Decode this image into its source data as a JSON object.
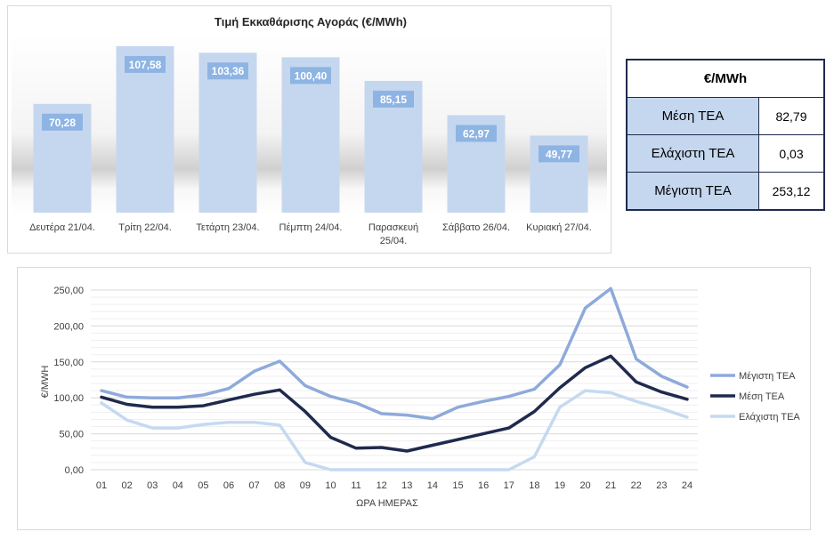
{
  "bar_chart": {
    "title": "Τιμή Εκκαθάρισης Αγοράς (€/MWh)"
  },
  "stats_table": {
    "header": "€/MWh",
    "rows": [
      {
        "label": "Μέση ΤΕΑ",
        "value": "82,79"
      },
      {
        "label": "Ελάχιστη ΤΕΑ",
        "value": "0,03"
      },
      {
        "label": "Μέγιστη ΤΕΑ",
        "value": "253,12"
      }
    ]
  },
  "colors": {
    "bar": "#c5d7ef",
    "bar_label_bg": "#8eb4e3",
    "max_series": "#8eaadb",
    "mean_series": "#1f2a4d",
    "min_series": "#c5d9f1",
    "grid": "#e6e6e6"
  },
  "chart_data": [
    {
      "type": "bar",
      "title": "Τιμή Εκκαθάρισης Αγοράς (€/MWh)",
      "categories": [
        [
          "Δευτέρα 21/04."
        ],
        [
          "Τρίτη 22/04."
        ],
        [
          "Τετάρτη 23/04."
        ],
        [
          "Πέμπτη 24/04."
        ],
        [
          "Παρασκευή",
          "25/04."
        ],
        [
          "Σάββατο 26/04."
        ],
        [
          "Κυριακή 27/04."
        ]
      ],
      "values": [
        70.28,
        107.58,
        103.36,
        100.4,
        85.15,
        62.97,
        49.77
      ],
      "value_labels": [
        "70,28",
        "107,58",
        "103,36",
        "100,40",
        "85,15",
        "62,97",
        "49,77"
      ],
      "ylim": [
        0,
        115
      ],
      "grid": false
    },
    {
      "type": "line",
      "x": [
        "01",
        "02",
        "03",
        "04",
        "05",
        "06",
        "07",
        "08",
        "09",
        "10",
        "11",
        "12",
        "13",
        "14",
        "15",
        "16",
        "17",
        "18",
        "19",
        "20",
        "21",
        "22",
        "23",
        "24"
      ],
      "xlabel": "ΩΡΑ ΗΜΕΡΑΣ",
      "ylabel": "€/MWH",
      "ylim": [
        0,
        250
      ],
      "yticks": [
        "0,00",
        "50,00",
        "100,00",
        "150,00",
        "200,00",
        "250,00"
      ],
      "ytick_values": [
        0,
        50,
        100,
        150,
        200,
        250
      ],
      "grid": true,
      "legend": "right",
      "series": [
        {
          "name": "Μέγιστη ΤΕΑ",
          "values": [
            110,
            101,
            100,
            100,
            104,
            113,
            137,
            151,
            117,
            102,
            93,
            78,
            76,
            71,
            87,
            95,
            102,
            112,
            146,
            225,
            252,
            154,
            130,
            115
          ]
        },
        {
          "name": "Μέση ΤΕΑ",
          "values": [
            101,
            91,
            87,
            87,
            89,
            97,
            105,
            111,
            81,
            45,
            30,
            31,
            26,
            34,
            42,
            50,
            58,
            81,
            114,
            142,
            158,
            122,
            108,
            98
          ]
        },
        {
          "name": "Ελάχιστη ΤΕΑ",
          "values": [
            93,
            69,
            58,
            58,
            63,
            66,
            66,
            62,
            10,
            0.03,
            0.03,
            0.03,
            0.03,
            0.03,
            0.03,
            0.03,
            0.03,
            18,
            87,
            110,
            107,
            95,
            85,
            73
          ]
        }
      ]
    }
  ]
}
